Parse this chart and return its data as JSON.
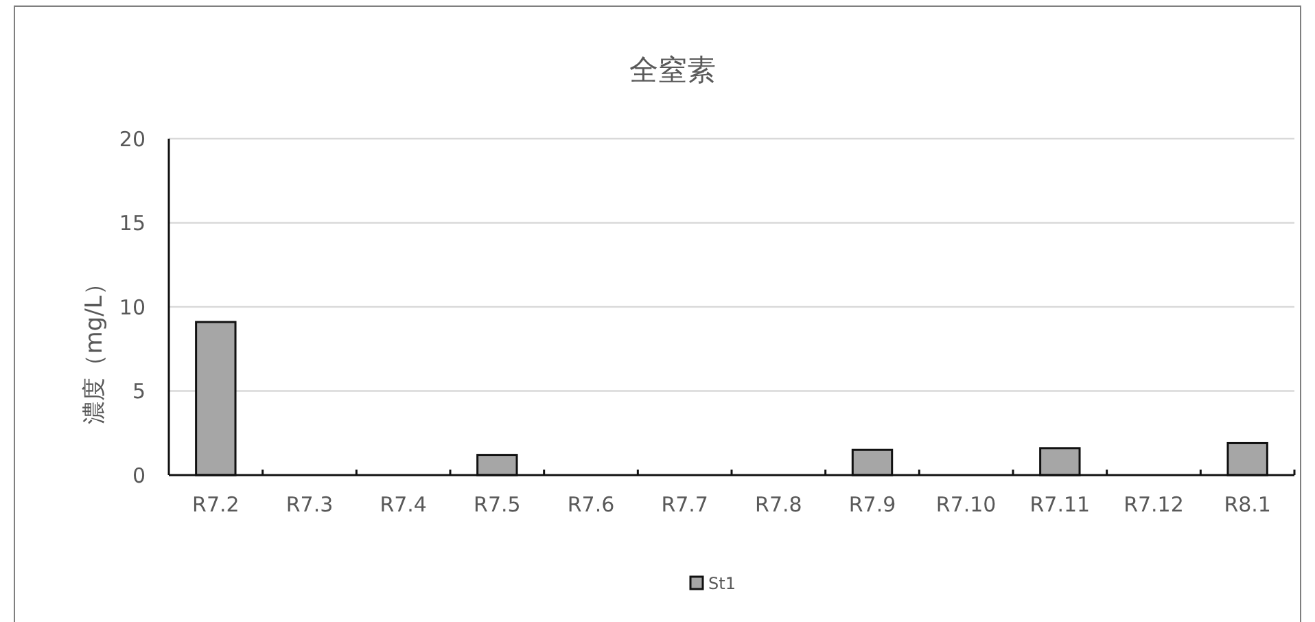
{
  "chart_data": {
    "type": "bar",
    "title": "全窒素",
    "ylabel": "濃度（mg/L）",
    "categories": [
      "R7.2",
      "R7.3",
      "R7.4",
      "R7.5",
      "R7.6",
      "R7.7",
      "R7.8",
      "R7.9",
      "R7.10",
      "R7.11",
      "R7.12",
      "R8.1"
    ],
    "series": [
      {
        "name": "St1",
        "color": "#a6a6a6",
        "values": [
          9.1,
          null,
          null,
          1.2,
          null,
          null,
          null,
          1.5,
          null,
          1.6,
          null,
          1.9
        ]
      }
    ],
    "ylim": [
      0,
      20
    ],
    "yticks": [
      0,
      5,
      10,
      15,
      20
    ],
    "grid": "y",
    "legend": "bottom"
  }
}
